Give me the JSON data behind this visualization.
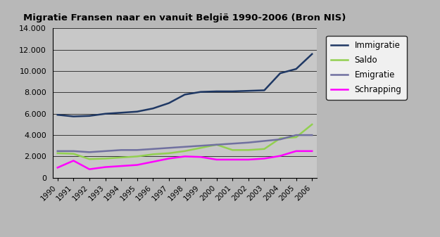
{
  "title": "Migratie Fransen naar en vanuit België 1990-2006 (Bron NIS)",
  "years": [
    1990,
    1991,
    1992,
    1993,
    1994,
    1995,
    1996,
    1997,
    1998,
    1999,
    2000,
    2001,
    2002,
    2003,
    2004,
    2005,
    2006
  ],
  "immigratie": [
    5900,
    5750,
    5800,
    6000,
    6100,
    6200,
    6500,
    7000,
    7800,
    8050,
    8100,
    8100,
    8150,
    8200,
    9800,
    10200,
    11600
  ],
  "saldo": [
    2300,
    2250,
    1750,
    1800,
    1900,
    2000,
    2200,
    2300,
    2500,
    2800,
    3100,
    2600,
    2600,
    2700,
    3700,
    3800,
    5000
  ],
  "emigratie": [
    2500,
    2500,
    2400,
    2500,
    2600,
    2600,
    2700,
    2800,
    2900,
    3000,
    3100,
    3200,
    3300,
    3450,
    3600,
    4000,
    4000
  ],
  "schrapping": [
    950,
    1600,
    800,
    1000,
    1100,
    1200,
    1500,
    1800,
    2000,
    1950,
    1700,
    1700,
    1700,
    1800,
    2050,
    2500,
    2500
  ],
  "immigratie_color": "#1F3864",
  "saldo_color": "#92D050",
  "emigratie_color": "#7070A0",
  "schrapping_color": "#FF00FF",
  "bg_outer": "#B8B8B8",
  "bg_plot": "#C8C8C8",
  "ylim": [
    0,
    14000
  ],
  "yticks": [
    0,
    2000,
    4000,
    6000,
    8000,
    10000,
    12000,
    14000
  ]
}
